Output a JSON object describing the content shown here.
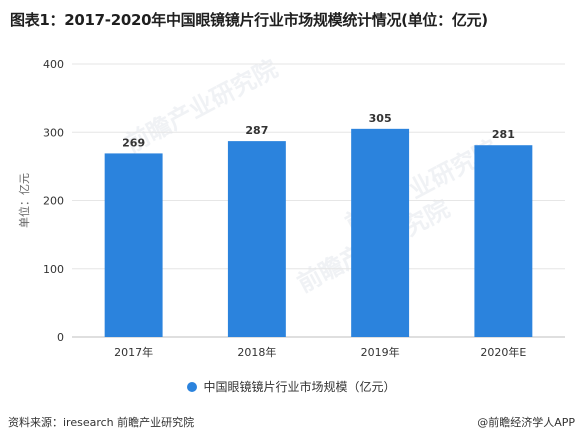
{
  "title": "图表1：2017-2020年中国眼镜镜片行业市场规模统计情况(单位：亿元)",
  "watermark": "前瞻产业研究院",
  "source": "资料来源：iresearch 前瞻产业研究院",
  "credit": "@前瞻经济学人APP",
  "colors": {
    "bar": "#2b83dd",
    "axis": "#bfbfbf",
    "grid": "#e6e6e6",
    "text": "#333333"
  },
  "chart_data": {
    "type": "bar",
    "categories": [
      "2017年",
      "2018年",
      "2019年",
      "2020年E"
    ],
    "series": [
      {
        "name": "中国眼镜镜片行业市场规模（亿元）",
        "values": [
          269,
          287,
          305,
          281
        ]
      }
    ],
    "data_labels": [
      "269",
      "287",
      "305",
      "281"
    ],
    "ylabel": "单位：亿元",
    "xlabel": "",
    "ylim": [
      0,
      400
    ],
    "yticks": [
      0,
      100,
      200,
      300,
      400
    ],
    "ytick_labels": [
      "0",
      "100",
      "200",
      "300",
      "400"
    ],
    "grid": true,
    "legend_position": "bottom"
  }
}
